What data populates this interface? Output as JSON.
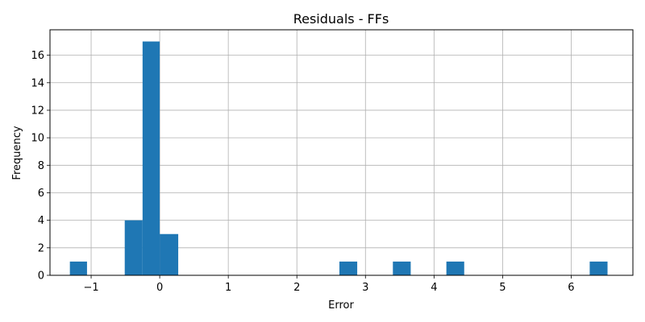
{
  "chart_data": {
    "type": "bar",
    "title": "Residuals - FFs",
    "xlabel": "Error",
    "ylabel": "Frequency",
    "xlim": [
      -1.6,
      6.9
    ],
    "ylim": [
      0,
      17.85
    ],
    "grid": true,
    "bar_color": "#1f77b4",
    "x_ticks": [
      {
        "value": -1,
        "label": "−1"
      },
      {
        "value": 0,
        "label": "0"
      },
      {
        "value": 1,
        "label": "1"
      },
      {
        "value": 2,
        "label": "2"
      },
      {
        "value": 3,
        "label": "3"
      },
      {
        "value": 4,
        "label": "4"
      },
      {
        "value": 5,
        "label": "5"
      },
      {
        "value": 6,
        "label": "6"
      }
    ],
    "y_ticks": [
      {
        "value": 0,
        "label": "0"
      },
      {
        "value": 2,
        "label": "2"
      },
      {
        "value": 4,
        "label": "4"
      },
      {
        "value": 6,
        "label": "6"
      },
      {
        "value": 8,
        "label": "8"
      },
      {
        "value": 10,
        "label": "10"
      },
      {
        "value": 12,
        "label": "12"
      },
      {
        "value": 14,
        "label": "14"
      },
      {
        "value": 16,
        "label": "16"
      }
    ],
    "bins": [
      {
        "x0": -1.31,
        "x1": -1.06,
        "count": 1
      },
      {
        "x0": -0.51,
        "x1": -0.25,
        "count": 4
      },
      {
        "x0": -0.25,
        "x1": 0.0,
        "count": 17
      },
      {
        "x0": 0.0,
        "x1": 0.27,
        "count": 3
      },
      {
        "x0": 2.62,
        "x1": 2.88,
        "count": 1
      },
      {
        "x0": 3.4,
        "x1": 3.66,
        "count": 1
      },
      {
        "x0": 4.18,
        "x1": 4.44,
        "count": 1
      },
      {
        "x0": 6.27,
        "x1": 6.53,
        "count": 1
      }
    ]
  }
}
